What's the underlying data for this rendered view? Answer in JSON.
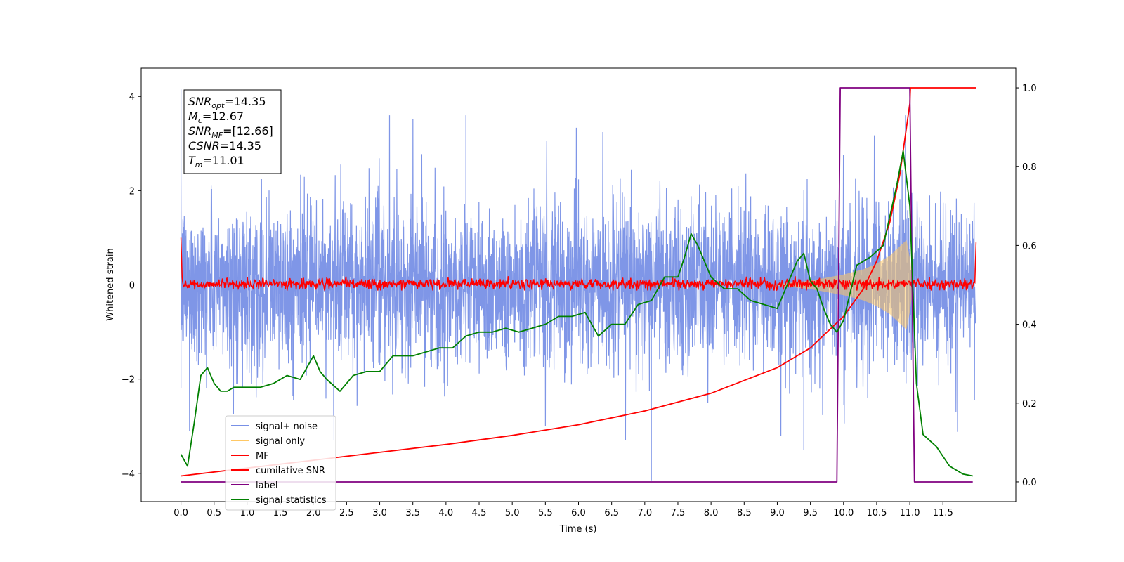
{
  "chart_data": {
    "type": "line",
    "xlabel": "Time (s)",
    "ylabel": "Whitened strain",
    "xlim": [
      -0.6,
      12.6
    ],
    "ylim": [
      -4.6,
      4.6
    ],
    "ylim_right": [
      -0.05,
      1.05
    ],
    "x_ticks": [
      0.0,
      0.5,
      1.0,
      1.5,
      2.0,
      2.5,
      3.0,
      3.5,
      4.0,
      4.5,
      5.0,
      5.5,
      6.0,
      6.5,
      7.0,
      7.5,
      8.0,
      8.5,
      9.0,
      9.5,
      10.0,
      10.5,
      11.0,
      11.5
    ],
    "x_tick_labels": [
      "0.0",
      "0.5",
      "1.0",
      "1.5",
      "2.0",
      "2.5",
      "3.0",
      "3.5",
      "4.0",
      "4.5",
      "5.0",
      "5.5",
      "6.0",
      "6.5",
      "7.0",
      "7.5",
      "8.0",
      "8.5",
      "9.0",
      "9.5",
      "10.0",
      "10.5",
      "11.0",
      "11.5"
    ],
    "y_ticks": [
      -4,
      -2,
      0,
      2,
      4
    ],
    "y_tick_labels": [
      "−4",
      "−2",
      "0",
      "2",
      "4"
    ],
    "y_right_ticks": [
      0.0,
      0.2,
      0.4,
      0.6,
      0.8,
      1.0
    ],
    "y_right_tick_labels": [
      "0.0",
      "0.2",
      "0.4",
      "0.6",
      "0.8",
      "1.0"
    ],
    "grid": false,
    "legend_position": "lower-left",
    "info_box": {
      "position": "top-left",
      "lines": [
        {
          "symbol": "SNR",
          "sub": "opt",
          "value": "=14.35"
        },
        {
          "symbol": "M",
          "sub": "c",
          "value": "=12.67"
        },
        {
          "symbol": "SNR",
          "sub": "MF",
          "value": "=[12.66]"
        },
        {
          "symbol": "CSNR",
          "sub": "",
          "value": "=14.35"
        },
        {
          "symbol": "T",
          "sub": "m",
          "value": "=11.01"
        }
      ]
    },
    "series": [
      {
        "name": "signal+ noise",
        "axis": "left",
        "color": "#7890e6",
        "description_values": {
          "envelope_typical": 2.0,
          "spikes": [
            [
              0.0,
              4.15
            ],
            [
              0.0,
              -2.2
            ],
            [
              7.1,
              -4.15
            ],
            [
              9.4,
              -3.5
            ],
            [
              4.3,
              3.6
            ]
          ],
          "x_range": [
            0.0,
            11.99
          ]
        }
      },
      {
        "name": "signal only",
        "axis": "left",
        "color": "#ffc865",
        "envelope": {
          "x": [
            9.0,
            9.5,
            10.0,
            10.3,
            10.5,
            10.7,
            10.85,
            10.95,
            11.01,
            11.05
          ],
          "amplitude": [
            0.02,
            0.09,
            0.22,
            0.33,
            0.45,
            0.62,
            0.82,
            0.95,
            0.5,
            0.0
          ]
        }
      },
      {
        "name": "MF",
        "axis": "left",
        "color": "#ff0000",
        "description_values": {
          "start": [
            0.0,
            1.0
          ],
          "baseline_band": [
            -0.1,
            0.15
          ],
          "end": [
            12.0,
            0.9
          ]
        }
      },
      {
        "name": "cumilative SNR",
        "axis": "right",
        "color": "#ff0000",
        "x": [
          0.0,
          1.0,
          2.0,
          3.0,
          4.0,
          5.0,
          6.0,
          7.0,
          8.0,
          9.0,
          9.5,
          10.0,
          10.3,
          10.5,
          10.7,
          10.85,
          10.95,
          11.0,
          11.01,
          11.5,
          12.0
        ],
        "y": [
          0.015,
          0.035,
          0.055,
          0.075,
          0.095,
          0.118,
          0.145,
          0.18,
          0.225,
          0.29,
          0.34,
          0.42,
          0.49,
          0.56,
          0.66,
          0.78,
          0.9,
          0.96,
          1.0,
          1.0,
          1.0
        ]
      },
      {
        "name": "label",
        "axis": "right",
        "color": "#800080",
        "x": [
          0.0,
          9.9,
          9.95,
          11.0,
          11.07,
          11.95
        ],
        "y": [
          0.0,
          0.0,
          1.0,
          1.0,
          0.0,
          0.0
        ]
      },
      {
        "name": "signal statistics",
        "axis": "right",
        "color": "#008000",
        "x": [
          0.0,
          0.1,
          0.2,
          0.3,
          0.4,
          0.5,
          0.6,
          0.7,
          0.8,
          1.0,
          1.2,
          1.4,
          1.6,
          1.8,
          2.0,
          2.1,
          2.2,
          2.4,
          2.6,
          2.8,
          3.0,
          3.2,
          3.3,
          3.5,
          3.7,
          3.9,
          4.1,
          4.3,
          4.5,
          4.7,
          4.9,
          5.1,
          5.3,
          5.5,
          5.7,
          5.9,
          6.1,
          6.3,
          6.5,
          6.7,
          6.9,
          7.1,
          7.3,
          7.5,
          7.6,
          7.7,
          7.8,
          7.9,
          8.0,
          8.2,
          8.4,
          8.6,
          8.8,
          9.0,
          9.2,
          9.3,
          9.4,
          9.5,
          9.6,
          9.7,
          9.8,
          9.9,
          10.0,
          10.2,
          10.4,
          10.6,
          10.8,
          10.9,
          11.0,
          11.1,
          11.2,
          11.4,
          11.6,
          11.8,
          11.95
        ],
        "y": [
          0.07,
          0.04,
          0.15,
          0.27,
          0.29,
          0.25,
          0.23,
          0.23,
          0.24,
          0.24,
          0.24,
          0.25,
          0.27,
          0.26,
          0.32,
          0.28,
          0.26,
          0.23,
          0.27,
          0.28,
          0.28,
          0.32,
          0.32,
          0.32,
          0.33,
          0.34,
          0.34,
          0.37,
          0.38,
          0.38,
          0.39,
          0.38,
          0.39,
          0.4,
          0.42,
          0.42,
          0.43,
          0.37,
          0.4,
          0.4,
          0.45,
          0.46,
          0.52,
          0.52,
          0.57,
          0.63,
          0.6,
          0.56,
          0.52,
          0.49,
          0.49,
          0.46,
          0.45,
          0.44,
          0.52,
          0.56,
          0.58,
          0.51,
          0.49,
          0.44,
          0.4,
          0.38,
          0.41,
          0.55,
          0.57,
          0.6,
          0.75,
          0.84,
          0.7,
          0.25,
          0.12,
          0.09,
          0.04,
          0.02,
          0.015
        ]
      }
    ]
  }
}
